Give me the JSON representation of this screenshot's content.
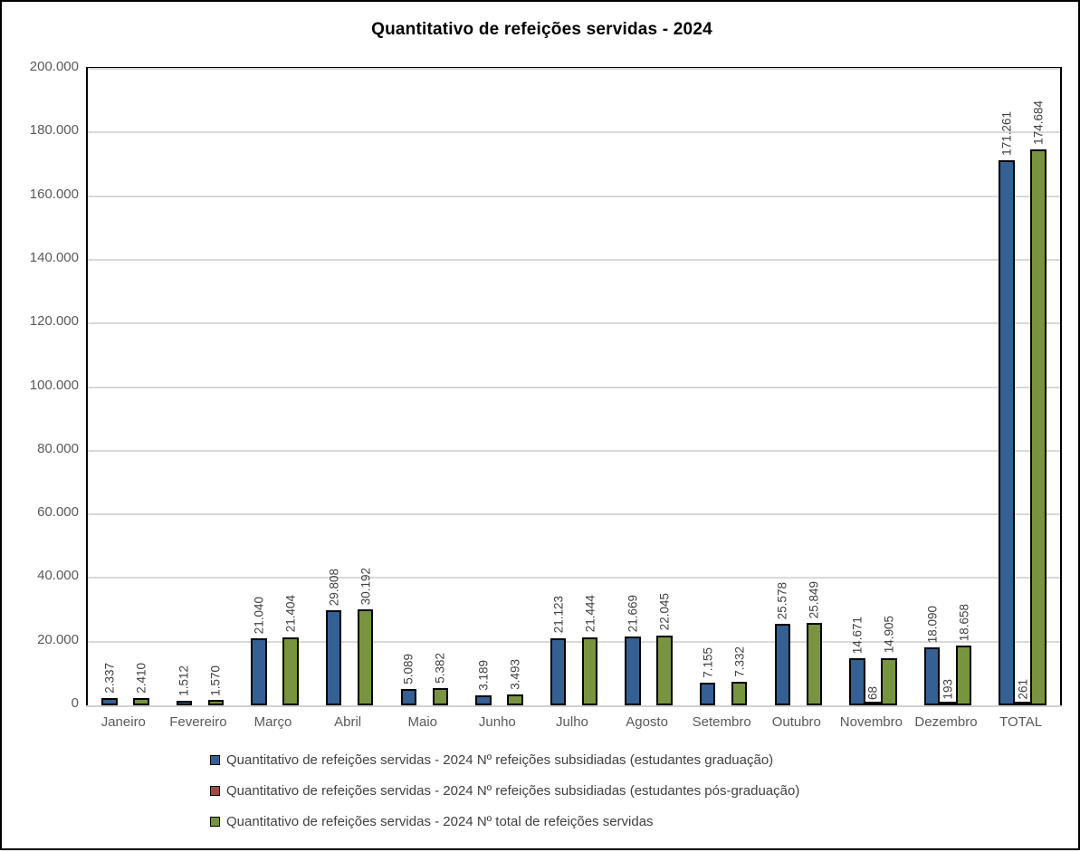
{
  "window": {
    "background_color": "#ffffff",
    "frame_border_color": "#000000"
  },
  "chart_data": {
    "type": "bar",
    "title": "Quantitativo de refeições servidas - 2024",
    "categories": [
      "Janeiro",
      "Fevereiro",
      "Março",
      "Abril",
      "Maio",
      "Junho",
      "Julho",
      "Agosto",
      "Setembro",
      "Outubro",
      "Novembro",
      "Dezembro",
      "TOTAL"
    ],
    "series": [
      {
        "name": "Quantitativo de refeições servidas - 2024 Nº refeições subsidiadas (estudantes graduação)",
        "color": "#346094",
        "values": [
          2337,
          1512,
          21040,
          29808,
          5089,
          3189,
          21123,
          21669,
          7155,
          25578,
          14671,
          18090,
          171261
        ]
      },
      {
        "name": "Quantitativo de refeições servidas - 2024 Nº refeições subsidiadas (estudantes pós-graduação)",
        "color": "#9e4b44",
        "values": [
          null,
          null,
          null,
          null,
          null,
          null,
          null,
          null,
          null,
          null,
          68,
          193,
          261
        ]
      },
      {
        "name": "Quantitativo de refeições servidas - 2024 Nº total de refeições servidas",
        "color": "#789440",
        "values": [
          2410,
          1570,
          21404,
          30192,
          5382,
          3493,
          21444,
          22045,
          7332,
          25849,
          14905,
          18658,
          174684
        ]
      }
    ],
    "y_axis": {
      "min": 0,
      "max": 200000,
      "step": 20000,
      "tick_labels": [
        "0",
        "20.000",
        "40.000",
        "60.000",
        "80.000",
        "100.000",
        "120.000",
        "140.000",
        "160.000",
        "180.000",
        "200.000"
      ]
    },
    "data_label_format": "thousands-dot",
    "grid": true,
    "gridline_color": "#d9d9d9",
    "axis_text_color": "#595959",
    "data_label_color": "#404040",
    "legend_position": "bottom-left"
  }
}
